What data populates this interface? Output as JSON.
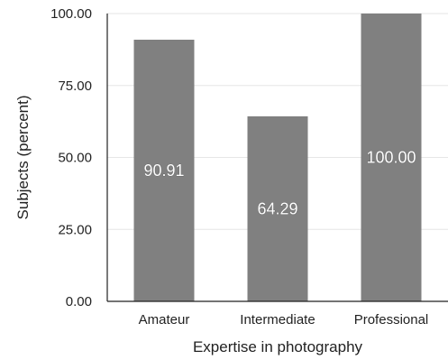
{
  "chart_data": {
    "type": "bar",
    "categories": [
      "Amateur",
      "Intermediate",
      "Professional"
    ],
    "values": [
      90.91,
      64.29,
      100.0
    ],
    "data_labels": [
      "90.91",
      "64.29",
      "100.00"
    ],
    "xlabel": "Expertise in photography",
    "ylabel": "Subjects (percent)",
    "ylim": [
      0,
      100
    ],
    "yticks": [
      "0.00",
      "25.00",
      "50.00",
      "75.00",
      "100.00"
    ],
    "ytick_values": [
      0,
      25,
      50,
      75,
      100
    ],
    "grid": true,
    "bar_color": "#808080",
    "grid_color": "#e6e6e6",
    "axis_color": "#222222"
  }
}
